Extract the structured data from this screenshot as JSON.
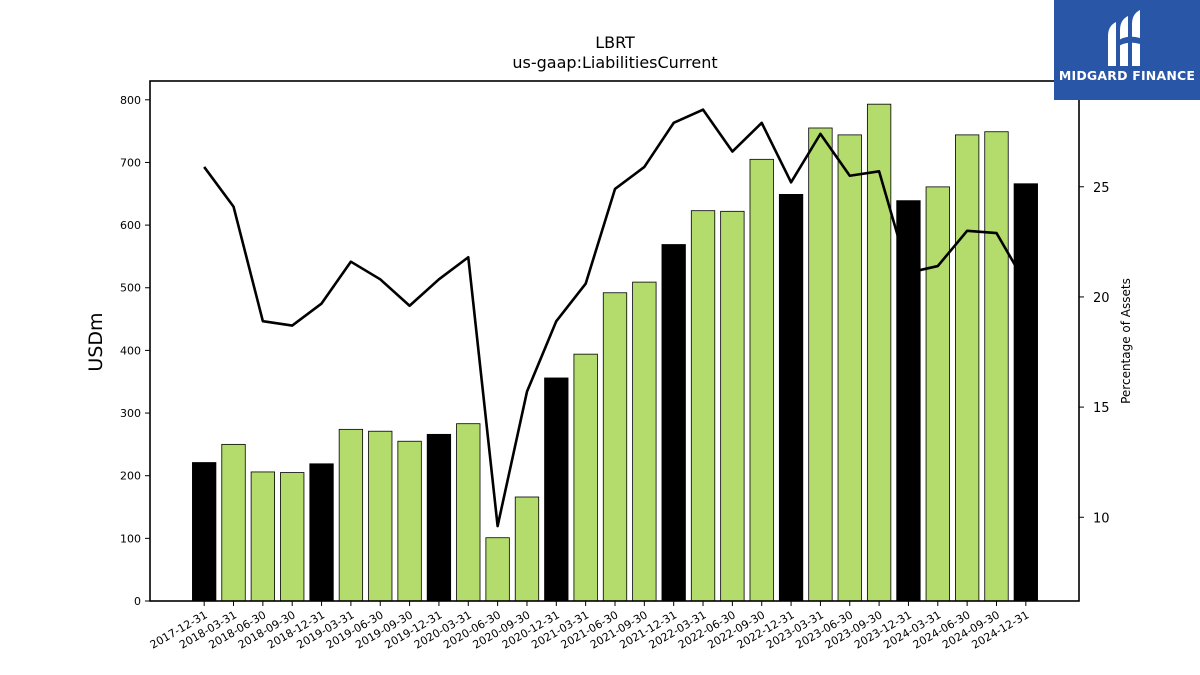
{
  "chart_data": {
    "type": "bar",
    "title": "LBRT",
    "subtitle": "us-gaap:LiabilitiesCurrent",
    "ylabel": "USDm",
    "y2label": "Percentage of Assets",
    "ylim": [
      0,
      830
    ],
    "y2lim": [
      6.2,
      29.8
    ],
    "yticks": [
      0,
      100,
      200,
      300,
      400,
      500,
      600,
      700,
      800
    ],
    "y2ticks": [
      10,
      15,
      20,
      25
    ],
    "grid": false,
    "categories": [
      "2017-12-31",
      "2018-03-31",
      "2018-06-30",
      "2018-09-30",
      "2018-12-31",
      "2019-03-31",
      "2019-06-30",
      "2019-09-30",
      "2019-12-31",
      "2020-03-31",
      "2020-06-30",
      "2020-09-30",
      "2020-12-31",
      "2021-03-31",
      "2021-06-30",
      "2021-09-30",
      "2021-12-31",
      "2022-03-31",
      "2022-06-30",
      "2022-09-30",
      "2022-12-31",
      "2023-03-31",
      "2023-06-30",
      "2023-09-30",
      "2023-12-31",
      "2024-03-31",
      "2024-06-30",
      "2024-09-30",
      "2024-12-31"
    ],
    "series": [
      {
        "type": "bar",
        "values": [
          221,
          250,
          206,
          205,
          219,
          274,
          271,
          255,
          266,
          283,
          101,
          166,
          356,
          394,
          492,
          509,
          569,
          623,
          622,
          705,
          649,
          755,
          744,
          793,
          639,
          661,
          744,
          749,
          666
        ],
        "colors": [
          "#000000",
          "#b3dc6c",
          "#b3dc6c",
          "#b3dc6c",
          "#000000",
          "#b3dc6c",
          "#b3dc6c",
          "#b3dc6c",
          "#000000",
          "#b3dc6c",
          "#b3dc6c",
          "#b3dc6c",
          "#000000",
          "#b3dc6c",
          "#b3dc6c",
          "#b3dc6c",
          "#000000",
          "#b3dc6c",
          "#b3dc6c",
          "#b3dc6c",
          "#000000",
          "#b3dc6c",
          "#b3dc6c",
          "#b3dc6c",
          "#000000",
          "#b3dc6c",
          "#b3dc6c",
          "#b3dc6c",
          "#000000"
        ]
      },
      {
        "type": "line",
        "axis": "right",
        "values": [
          25.9,
          24.1,
          18.9,
          18.7,
          19.7,
          21.6,
          20.8,
          19.6,
          20.8,
          21.8,
          9.6,
          15.7,
          18.9,
          20.6,
          24.9,
          25.9,
          27.9,
          28.5,
          26.6,
          27.9,
          25.2,
          27.4,
          25.5,
          25.7,
          21.1,
          21.4,
          23.0,
          22.9,
          20.6
        ]
      }
    ],
    "colors": {
      "bar_green": "#b3dc6c",
      "bar_black": "#000000",
      "line": "#000000"
    }
  },
  "logo": {
    "text": "MIDGARD FINANCE",
    "background": "#2a56a8"
  }
}
